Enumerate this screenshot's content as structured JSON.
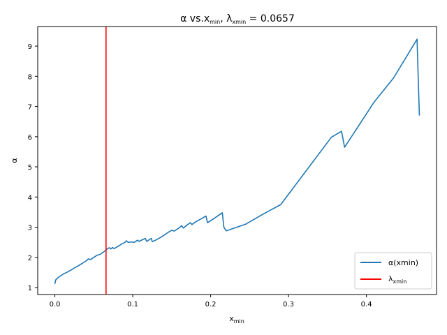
{
  "chart_data": {
    "type": "line",
    "title": {
      "main": "α vs.x",
      "main_sub": "min",
      "sep": ",  λ",
      "lam_sub": "xmin",
      "value_text": " = 0.0657"
    },
    "xlabel": {
      "main": "x",
      "sub": "min"
    },
    "ylabel": "α",
    "xlim": [
      -0.022,
      0.49
    ],
    "ylim": [
      0.77,
      9.65
    ],
    "x_ticks": [
      {
        "value": 0.0,
        "label": "0.0"
      },
      {
        "value": 0.1,
        "label": "0.1"
      },
      {
        "value": 0.2,
        "label": "0.2"
      },
      {
        "value": 0.3,
        "label": "0.3"
      },
      {
        "value": 0.4,
        "label": "0.4"
      }
    ],
    "y_ticks": [
      {
        "value": 1,
        "label": "1"
      },
      {
        "value": 2,
        "label": "2"
      },
      {
        "value": 3,
        "label": "3"
      },
      {
        "value": 4,
        "label": "4"
      },
      {
        "value": 5,
        "label": "5"
      },
      {
        "value": 6,
        "label": "6"
      },
      {
        "value": 7,
        "label": "7"
      },
      {
        "value": 8,
        "label": "8"
      },
      {
        "value": 9,
        "label": "9"
      }
    ],
    "grid": false,
    "legend_position": "bottom-right",
    "series": [
      {
        "name": "α(xmin)",
        "legend_main": "α(xmin)",
        "color": "#1f77b4",
        "points": [
          [
            0.0,
            1.12
          ],
          [
            0.001,
            1.25
          ],
          [
            0.003,
            1.3
          ],
          [
            0.005,
            1.35
          ],
          [
            0.008,
            1.4
          ],
          [
            0.011,
            1.45
          ],
          [
            0.015,
            1.5
          ],
          [
            0.02,
            1.57
          ],
          [
            0.025,
            1.65
          ],
          [
            0.03,
            1.72
          ],
          [
            0.035,
            1.8
          ],
          [
            0.04,
            1.88
          ],
          [
            0.043,
            1.95
          ],
          [
            0.046,
            1.93
          ],
          [
            0.05,
            2.0
          ],
          [
            0.054,
            2.07
          ],
          [
            0.058,
            2.1
          ],
          [
            0.062,
            2.17
          ],
          [
            0.066,
            2.25
          ],
          [
            0.068,
            2.3
          ],
          [
            0.07,
            2.32
          ],
          [
            0.072,
            2.28
          ],
          [
            0.074,
            2.33
          ],
          [
            0.076,
            2.29
          ],
          [
            0.08,
            2.35
          ],
          [
            0.085,
            2.43
          ],
          [
            0.09,
            2.5
          ],
          [
            0.092,
            2.55
          ],
          [
            0.094,
            2.5
          ],
          [
            0.098,
            2.51
          ],
          [
            0.102,
            2.5
          ],
          [
            0.106,
            2.57
          ],
          [
            0.108,
            2.53
          ],
          [
            0.112,
            2.58
          ],
          [
            0.116,
            2.63
          ],
          [
            0.118,
            2.53
          ],
          [
            0.122,
            2.6
          ],
          [
            0.124,
            2.63
          ],
          [
            0.125,
            2.52
          ],
          [
            0.13,
            2.58
          ],
          [
            0.135,
            2.65
          ],
          [
            0.14,
            2.73
          ],
          [
            0.145,
            2.82
          ],
          [
            0.15,
            2.9
          ],
          [
            0.153,
            2.87
          ],
          [
            0.158,
            2.95
          ],
          [
            0.163,
            3.05
          ],
          [
            0.165,
            2.97
          ],
          [
            0.17,
            3.08
          ],
          [
            0.174,
            3.15
          ],
          [
            0.176,
            3.09
          ],
          [
            0.182,
            3.2
          ],
          [
            0.188,
            3.28
          ],
          [
            0.194,
            3.37
          ],
          [
            0.196,
            3.15
          ],
          [
            0.205,
            3.3
          ],
          [
            0.215,
            3.48
          ],
          [
            0.217,
            3.0
          ],
          [
            0.22,
            2.88
          ],
          [
            0.245,
            3.1
          ],
          [
            0.265,
            3.4
          ],
          [
            0.29,
            3.75
          ],
          [
            0.355,
            5.98
          ],
          [
            0.368,
            6.18
          ],
          [
            0.372,
            5.65
          ],
          [
            0.41,
            7.15
          ],
          [
            0.435,
            7.95
          ],
          [
            0.465,
            9.23
          ],
          [
            0.468,
            6.7
          ]
        ]
      },
      {
        "name": "λxmin",
        "legend_main": "λ",
        "legend_sub": "xmin",
        "color": "#ff0000",
        "vline_x": 0.0657
      }
    ]
  }
}
